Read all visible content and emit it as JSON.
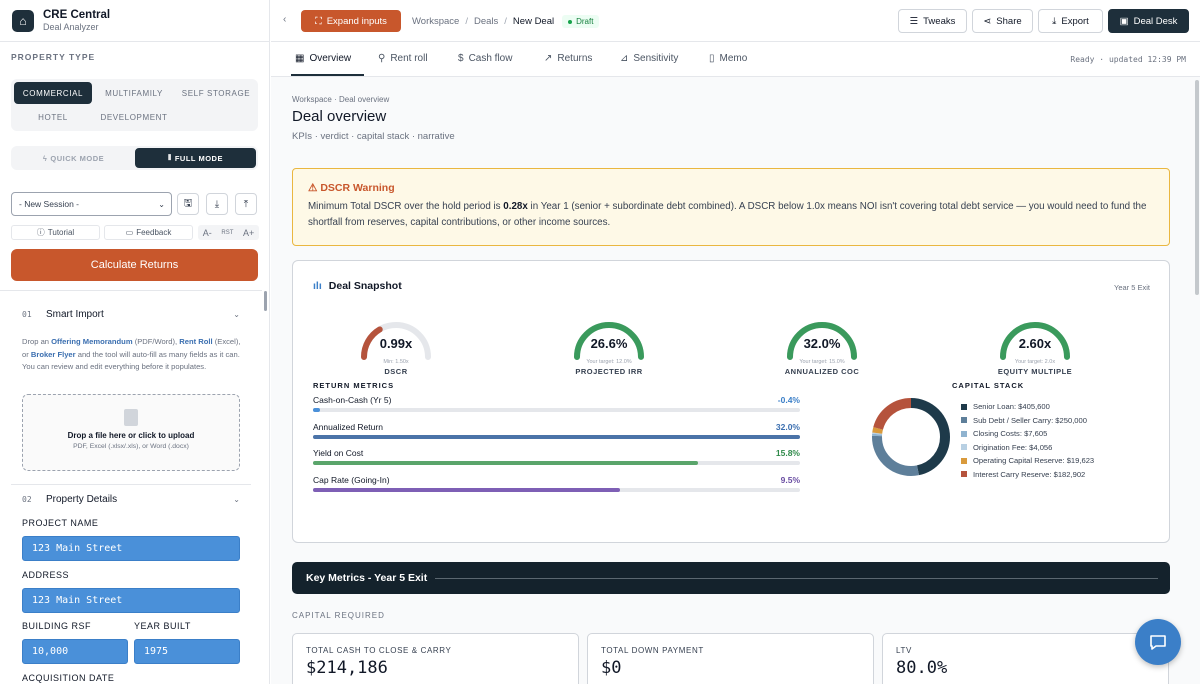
{
  "brand": {
    "title": "CRE Central",
    "subtitle": "Deal Analyzer"
  },
  "sidebar": {
    "property_type_label": "PROPERTY TYPE",
    "property_types": [
      "COMMERCIAL",
      "MULTIFAMILY",
      "SELF STORAGE",
      "HOTEL",
      "DEVELOPMENT"
    ],
    "active_property_type": "COMMERCIAL",
    "modes": [
      "QUICK MODE",
      "FULL MODE"
    ],
    "active_mode": "FULL MODE",
    "session_value": "- New Session -",
    "tutorial_label": "Tutorial",
    "feedback_label": "Feedback",
    "font_controls": [
      "A-",
      "RST",
      "A+"
    ],
    "calculate_label": "Calculate Returns",
    "smart_import": {
      "num": "01",
      "title": "Smart Import",
      "desc_1": "Drop an ",
      "om": "Offering Memorandum",
      "desc_2": " (PDF/Word), ",
      "rr": "Rent Roll",
      "desc_3": " (Excel), or ",
      "bf": "Broker Flyer",
      "desc_4": " and the tool will auto-fill as many fields as it can. You can review and edit everything before it populates.",
      "drop_title": "Drop a file here or click to upload",
      "drop_sub": "PDF, Excel (.xlsx/.xls), or Word (.docx)"
    },
    "property_details": {
      "num": "02",
      "title": "Property Details",
      "project_name_label": "PROJECT NAME",
      "project_name": "123 Main Street",
      "address_label": "ADDRESS",
      "address": "123 Main Street",
      "building_rsf_label": "BUILDING RSF",
      "building_rsf": "10,000",
      "year_built_label": "YEAR BUILT",
      "year_built": "1975",
      "acquisition_date_label": "ACQUISITION DATE"
    }
  },
  "topbar": {
    "expand_label": "Expand inputs",
    "breadcrumbs": [
      "Workspace",
      "Deals",
      "New Deal"
    ],
    "badge": "Draft",
    "buttons": {
      "tweaks": "Tweaks",
      "share": "Share",
      "export": "Export",
      "deal_desk": "Deal Desk"
    }
  },
  "tabs": [
    "Overview",
    "Rent roll",
    "Cash flow",
    "Returns",
    "Sensitivity",
    "Memo"
  ],
  "status": "Ready · updated 12:39 PM",
  "page": {
    "crumb": "Workspace · Deal overview",
    "title": "Deal overview",
    "subtitle": "KPIs · verdict · capital stack · narrative"
  },
  "warning": {
    "title": "DSCR Warning",
    "text_1": "Minimum Total DSCR over the hold period is ",
    "value": "0.28x",
    "text_2": " in Year 1 (senior + subordinate debt combined). A DSCR below 1.0x means NOI isn't covering total debt service — you would need to fund the shortfall from reserves, capital contributions, or other income sources."
  },
  "snapshot": {
    "title": "Deal Snapshot",
    "exit": "Year 5 Exit",
    "gauges": [
      {
        "value": "0.99x",
        "sub": "Min: 1.50x",
        "label": "DSCR",
        "fill": 0.33,
        "color": "#b5533c"
      },
      {
        "value": "26.6%",
        "sub": "Your target: 12.0%",
        "label": "PROJECTED IRR",
        "fill": 1.0,
        "color": "#3a9a5c"
      },
      {
        "value": "32.0%",
        "sub": "Your target: 15.0%",
        "label": "ANNUALIZED COC",
        "fill": 1.0,
        "color": "#3a9a5c"
      },
      {
        "value": "2.60x",
        "sub": "Your target: 2.0x",
        "label": "EQUITY MULTIPLE",
        "fill": 1.0,
        "color": "#3a9a5c"
      }
    ],
    "return_metrics_label": "RETURN METRICS",
    "return_metrics": [
      {
        "label": "Cash-on-Cash (Yr 5)",
        "value": "-0.4%",
        "fill": 0.015,
        "color": "#4a90d9",
        "text_color": "#3b7fc8"
      },
      {
        "label": "Annualized Return",
        "value": "32.0%",
        "fill": 1.0,
        "color": "#4b73a8",
        "text_color": "#3b6fb0"
      },
      {
        "label": "Yield on Cost",
        "value": "15.8%",
        "fill": 0.79,
        "color": "#5aa56b",
        "text_color": "#2f8a4a"
      },
      {
        "label": "Cap Rate (Going-In)",
        "value": "9.5%",
        "fill": 0.63,
        "color": "#7e5fb5",
        "text_color": "#6b4fa3"
      }
    ],
    "capital_stack_label": "CAPITAL STACK",
    "capital_stack": [
      {
        "label": "Senior Loan: $405,600",
        "amount": 405600,
        "color": "#1e3a4a"
      },
      {
        "label": "Sub Debt / Seller Carry: $250,000",
        "amount": 250000,
        "color": "#5e7f9a"
      },
      {
        "label": "Closing Costs: $7,605",
        "amount": 7605,
        "color": "#8fb3cf"
      },
      {
        "label": "Origination Fee: $4,056",
        "amount": 4056,
        "color": "#b8d0e3"
      },
      {
        "label": "Operating Capital Reserve: $19,623",
        "amount": 19623,
        "color": "#d99a3c"
      },
      {
        "label": "Interest Carry Reserve: $182,902",
        "amount": 182902,
        "color": "#b5533c"
      }
    ]
  },
  "key_metrics_title": "Key Metrics - Year 5 Exit",
  "capital_required_label": "CAPITAL REQUIRED",
  "cards": [
    {
      "label": "TOTAL CASH TO CLOSE & CARRY",
      "value": "$214,186"
    },
    {
      "label": "TOTAL DOWN PAYMENT",
      "value": "$0"
    },
    {
      "label": "LTV",
      "value": "80.0%"
    }
  ]
}
